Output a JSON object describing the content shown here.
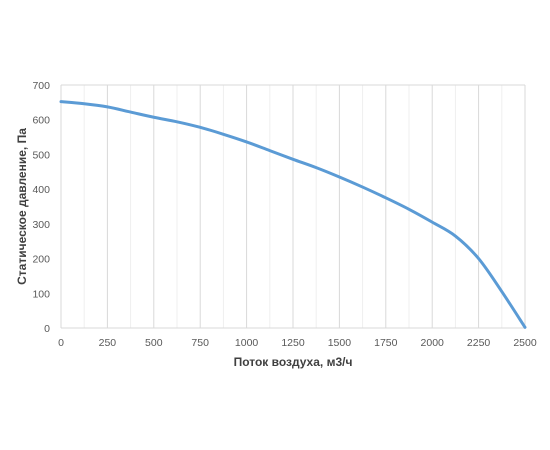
{
  "chart_data": {
    "type": "line",
    "title": "",
    "xlabel": "Поток воздуха, м3/ч",
    "ylabel": "Статическое давление, Па",
    "xlim": [
      0,
      2500
    ],
    "ylim": [
      0,
      700
    ],
    "x_ticks": [
      0,
      250,
      500,
      750,
      1000,
      1250,
      1500,
      1750,
      2000,
      2250,
      2500
    ],
    "x_tick_labels": [
      "0",
      "250",
      "500",
      "750",
      "1000",
      "1250",
      "1500",
      "1750",
      "2000",
      "2250",
      "2500"
    ],
    "y_ticks": [
      0,
      100,
      200,
      300,
      400,
      500,
      600,
      700
    ],
    "y_tick_labels": [
      "0",
      "100",
      "200",
      "300",
      "400",
      "500",
      "600",
      "700"
    ],
    "grid": {
      "vertical": true,
      "horizontal": false,
      "minor_vertical_step": 125
    },
    "legend": "none",
    "series": [
      {
        "color": "#5B9BD5",
        "points": [
          {
            "x": 0,
            "y": 652
          },
          {
            "x": 125,
            "y": 646
          },
          {
            "x": 250,
            "y": 637
          },
          {
            "x": 375,
            "y": 622
          },
          {
            "x": 500,
            "y": 607
          },
          {
            "x": 625,
            "y": 594
          },
          {
            "x": 750,
            "y": 578
          },
          {
            "x": 875,
            "y": 558
          },
          {
            "x": 1000,
            "y": 536
          },
          {
            "x": 1125,
            "y": 511
          },
          {
            "x": 1250,
            "y": 486
          },
          {
            "x": 1375,
            "y": 462
          },
          {
            "x": 1500,
            "y": 435
          },
          {
            "x": 1625,
            "y": 406
          },
          {
            "x": 1750,
            "y": 375
          },
          {
            "x": 1875,
            "y": 342
          },
          {
            "x": 2000,
            "y": 305
          },
          {
            "x": 2125,
            "y": 265
          },
          {
            "x": 2250,
            "y": 200
          },
          {
            "x": 2375,
            "y": 105
          },
          {
            "x": 2500,
            "y": 2
          }
        ]
      }
    ]
  }
}
